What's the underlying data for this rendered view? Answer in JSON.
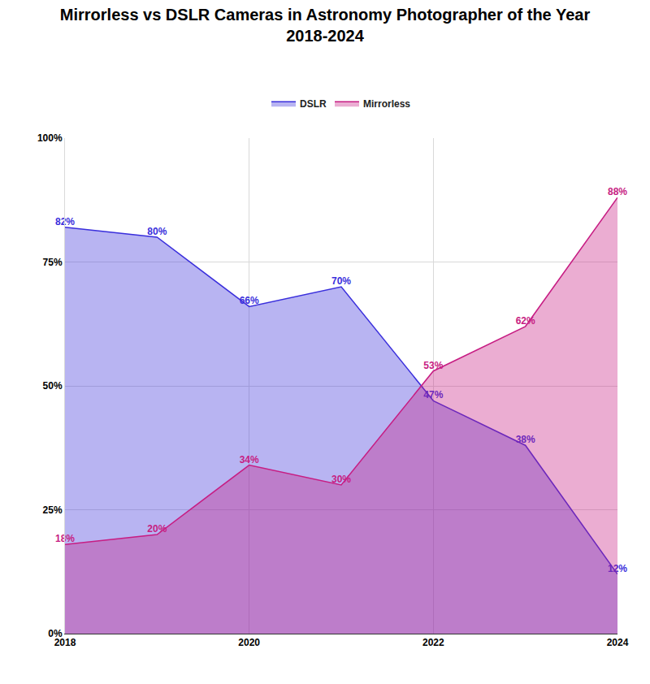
{
  "chart_data": {
    "type": "area",
    "title": "Mirrorless vs DSLR Cameras in Astronomy Photographer of the Year 2018-2024",
    "x": [
      2018,
      2019,
      2020,
      2021,
      2022,
      2023,
      2024
    ],
    "series": [
      {
        "name": "DSLR",
        "color": "#3a2fdc",
        "values": [
          82,
          80,
          66,
          70,
          47,
          38,
          12
        ],
        "value_labels": [
          "82%",
          "80%",
          "66%",
          "70%",
          "47%",
          "38%",
          "12%"
        ]
      },
      {
        "name": "Mirrorless",
        "color": "#c71d83",
        "values": [
          18,
          20,
          34,
          30,
          53,
          62,
          88
        ],
        "value_labels": [
          "18%",
          "20%",
          "34%",
          "30%",
          "53%",
          "62%",
          "88%"
        ]
      }
    ],
    "xlim": [
      2018,
      2024
    ],
    "xticks": [
      2018,
      2020,
      2022,
      2024
    ],
    "ylim": [
      0,
      100
    ],
    "yticks": [
      {
        "value": 0,
        "label": "0%"
      },
      {
        "value": 25,
        "label": "25%"
      },
      {
        "value": 50,
        "label": "50%"
      },
      {
        "value": 75,
        "label": "75%"
      },
      {
        "value": 100,
        "label": "100%"
      }
    ],
    "grid": true,
    "legend": "top",
    "data_labels": true
  }
}
